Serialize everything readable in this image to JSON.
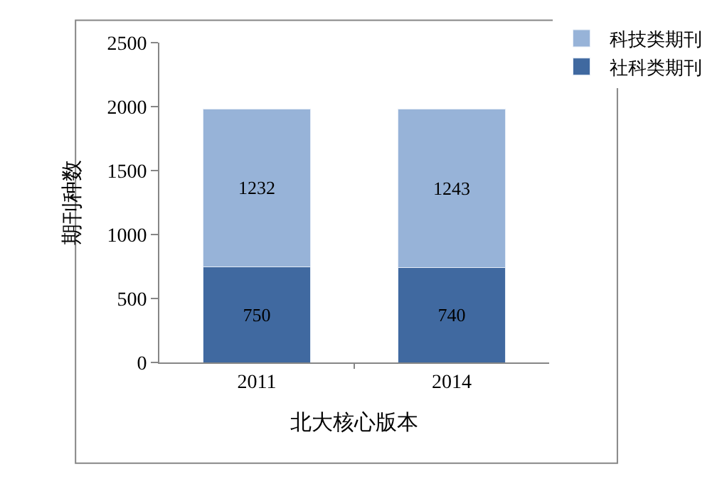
{
  "chart_data": {
    "type": "bar",
    "stacked": true,
    "xlabel": "北大核心版本",
    "ylabel": "期刊种数",
    "categories": [
      "2011",
      "2014"
    ],
    "series": [
      {
        "name": "社科类期刊",
        "color": "#4069a0",
        "values": [
          750,
          740
        ]
      },
      {
        "name": "科技类期刊",
        "color": "#97b3d8",
        "values": [
          1232,
          1243
        ]
      }
    ],
    "ylim": [
      0,
      2500
    ],
    "yticks": [
      0,
      500,
      1000,
      1500,
      2000,
      2500
    ],
    "grid": false,
    "legend": "top right",
    "data_labels": true
  }
}
